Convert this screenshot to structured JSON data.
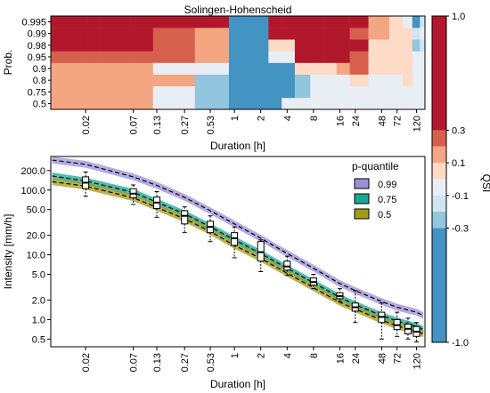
{
  "chart_data": [
    {
      "type": "heatmap",
      "title": "Solingen-Hohenscheid",
      "xlabel": "Duration [h]",
      "ylabel": "Prob.",
      "x_ticks": [
        "0.02",
        "0.07",
        "0.13",
        "0.27",
        "0.53",
        "1",
        "2",
        "4",
        "8",
        "16",
        "24",
        "48",
        "72",
        "120"
      ],
      "y_ticks": [
        "0.5",
        "0.75",
        "0.8",
        "0.9",
        "0.95",
        "0.98",
        "0.99",
        "0.995"
      ],
      "x_columns_h": [
        0.0083,
        0.0167,
        0.025,
        0.033,
        0.05,
        0.083,
        0.167,
        0.25,
        0.5,
        0.75,
        1,
        2,
        3,
        4,
        6,
        9,
        12,
        18,
        24,
        48,
        72,
        96,
        120,
        144
      ],
      "y_rows": [
        0.5,
        0.75,
        0.8,
        0.9,
        0.95,
        0.98,
        0.99,
        0.995
      ],
      "colorbar": {
        "label": "QSI",
        "ticks": [
          "1.0",
          "0.3",
          "0.1",
          "-0.1",
          "-0.3",
          "-1.0"
        ],
        "boundaries": [
          1.0,
          0.3,
          0.2,
          0.1,
          0.0,
          -0.1,
          -0.2,
          -0.3,
          -1.0
        ],
        "colors": [
          "#b2182b",
          "#d6604d",
          "#f4a582",
          "#fddbc7",
          "#e8eef4",
          "#d1e5f0",
          "#92c5de",
          "#4393c3",
          "#2166ac"
        ]
      },
      "qsi": [
        [
          0.2,
          0.2,
          0.2,
          0.2,
          0.2,
          0.2,
          0.0,
          0.0,
          -0.2,
          -0.2,
          -0.3,
          -0.3,
          -0.3,
          0.0,
          0.0,
          0.0,
          0.0,
          0.0,
          0.0,
          -0.05,
          -0.05,
          -0.05,
          -0.05,
          0.0
        ],
        [
          0.2,
          0.2,
          0.2,
          0.2,
          0.2,
          0.2,
          0.0,
          0.0,
          -0.2,
          -0.2,
          -0.3,
          -0.3,
          -0.3,
          -0.3,
          -0.2,
          -0.05,
          0.0,
          0.0,
          0.0,
          0.0,
          -0.05,
          -0.05,
          0.0,
          0.0
        ],
        [
          0.2,
          0.2,
          0.2,
          0.2,
          0.2,
          0.2,
          0.2,
          0.2,
          -0.2,
          -0.2,
          -0.3,
          -0.3,
          -0.5,
          -0.5,
          -0.2,
          -0.05,
          0.0,
          0.0,
          0.05,
          0.0,
          0.0,
          0.05,
          0.0,
          0.0
        ],
        [
          0.2,
          0.2,
          0.2,
          0.2,
          0.2,
          0.2,
          0.0,
          0.0,
          -0.05,
          -0.05,
          -0.3,
          -0.5,
          -0.5,
          -0.5,
          0.05,
          0.05,
          0.05,
          0.2,
          0.25,
          0.05,
          0.05,
          0.05,
          0.0,
          0.0
        ],
        [
          0.3,
          0.3,
          0.3,
          0.3,
          0.3,
          0.3,
          0.3,
          0.3,
          0.2,
          0.2,
          -0.3,
          -0.5,
          -0.05,
          -0.05,
          0.5,
          0.5,
          0.5,
          0.5,
          0.25,
          0.05,
          0.05,
          0.05,
          -0.05,
          -0.05
        ],
        [
          0.5,
          0.5,
          0.5,
          0.5,
          0.5,
          0.5,
          0.3,
          0.3,
          0.2,
          0.2,
          -0.3,
          -0.5,
          0.05,
          0.05,
          0.5,
          0.5,
          0.5,
          0.5,
          0.5,
          0.05,
          0.05,
          0.05,
          -0.2,
          -0.15
        ],
        [
          0.5,
          0.5,
          0.5,
          0.5,
          0.5,
          0.5,
          0.3,
          0.3,
          0.2,
          0.2,
          -0.3,
          -0.5,
          0.5,
          0.5,
          0.5,
          0.5,
          0.5,
          0.5,
          0.25,
          0.2,
          0.05,
          0.05,
          -0.15,
          0.0
        ],
        [
          0.5,
          0.5,
          0.5,
          0.5,
          0.5,
          0.5,
          0.5,
          0.5,
          0.5,
          0.5,
          -0.3,
          -0.5,
          0.5,
          0.5,
          0.5,
          0.5,
          0.5,
          0.5,
          0.5,
          0.2,
          0.05,
          -0.05,
          -0.5,
          -0.15
        ]
      ]
    },
    {
      "type": "line",
      "xlabel": "Duration [h]",
      "ylabel": "Intensity [mm/h]",
      "y_scale": "log",
      "x_scale": "log",
      "x_ticks": [
        "0.02",
        "0.07",
        "0.13",
        "0.27",
        "0.53",
        "1",
        "2",
        "4",
        "8",
        "16",
        "24",
        "48",
        "72",
        "120"
      ],
      "y_ticks": [
        "0.5",
        "1.0",
        "2.0",
        "5.0",
        "10.0",
        "20.0",
        "50.0",
        "100.0",
        "200.0"
      ],
      "ylim": [
        0.38,
        330
      ],
      "legend": {
        "title": "p-quantile",
        "position": "top-right"
      },
      "series": [
        {
          "name": "0.99",
          "color": "#9b8fd8",
          "x": [
            0.0083,
            0.02,
            0.07,
            0.13,
            0.27,
            0.53,
            1,
            2,
            4,
            8,
            16,
            24,
            48,
            72,
            120,
            144
          ],
          "y": [
            290,
            250,
            160,
            118,
            77,
            48,
            30,
            18,
            10.5,
            6.2,
            3.6,
            2.8,
            1.9,
            1.55,
            1.3,
            1.15
          ]
        },
        {
          "name": "0.75",
          "color": "#1aa690",
          "x": [
            0.0083,
            0.02,
            0.07,
            0.13,
            0.27,
            0.53,
            1,
            2,
            4,
            8,
            16,
            24,
            48,
            72,
            120,
            144
          ],
          "y": [
            165,
            138,
            92,
            65,
            43,
            27,
            17,
            10.5,
            6.2,
            3.7,
            2.2,
            1.7,
            1.15,
            0.95,
            0.78,
            0.7
          ]
        },
        {
          "name": "0.5",
          "color": "#a39a1a",
          "x": [
            0.0083,
            0.02,
            0.07,
            0.13,
            0.27,
            0.53,
            1,
            2,
            4,
            8,
            16,
            24,
            48,
            72,
            120,
            144
          ],
          "y": [
            135,
            115,
            76,
            54,
            36,
            23,
            14,
            8.8,
            5.2,
            3.1,
            1.85,
            1.45,
            0.98,
            0.8,
            0.66,
            0.6
          ]
        }
      ],
      "boxplots": [
        {
          "x": 0.02,
          "min": 80,
          "q1": 105,
          "median": 130,
          "q3": 160,
          "max": 190
        },
        {
          "x": 0.07,
          "min": 60,
          "q1": 76,
          "median": 88,
          "q3": 105,
          "max": 120
        },
        {
          "x": 0.13,
          "min": 38,
          "q1": 52,
          "median": 64,
          "q3": 78,
          "max": 95
        },
        {
          "x": 0.27,
          "min": 22,
          "q1": 30,
          "median": 40,
          "q3": 48,
          "max": 55
        },
        {
          "x": 0.53,
          "min": 16,
          "q1": 22,
          "median": 27,
          "q3": 33,
          "max": 40
        },
        {
          "x": 1,
          "min": 9,
          "q1": 14,
          "median": 18,
          "q3": 22,
          "max": 27
        },
        {
          "x": 2,
          "min": 5.5,
          "q1": 8,
          "median": 11,
          "q3": 16,
          "max": 17
        },
        {
          "x": 4,
          "min": 4.8,
          "q1": 5.8,
          "median": 6.6,
          "q3": 8,
          "max": 9.5
        },
        {
          "x": 8,
          "min": 3,
          "q1": 3.4,
          "median": 3.8,
          "q3": 4.4,
          "max": 5
        },
        {
          "x": 16,
          "min": 1.9,
          "q1": 2.1,
          "median": 2.3,
          "q3": 2.6,
          "max": 3
        },
        {
          "x": 24,
          "min": 0.9,
          "q1": 1.35,
          "median": 1.55,
          "q3": 1.8,
          "max": 2.8
        },
        {
          "x": 48,
          "min": 0.5,
          "q1": 0.9,
          "median": 1.1,
          "q3": 1.3,
          "max": 1.8
        },
        {
          "x": 72,
          "min": 0.55,
          "q1": 0.7,
          "median": 0.82,
          "q3": 1.0,
          "max": 1.3
        },
        {
          "x": 96,
          "min": 0.5,
          "q1": 0.6,
          "median": 0.72,
          "q3": 0.85,
          "max": 1.05
        },
        {
          "x": 120,
          "min": 0.45,
          "q1": 0.55,
          "median": 0.65,
          "q3": 0.78,
          "max": 0.9
        }
      ]
    }
  ]
}
